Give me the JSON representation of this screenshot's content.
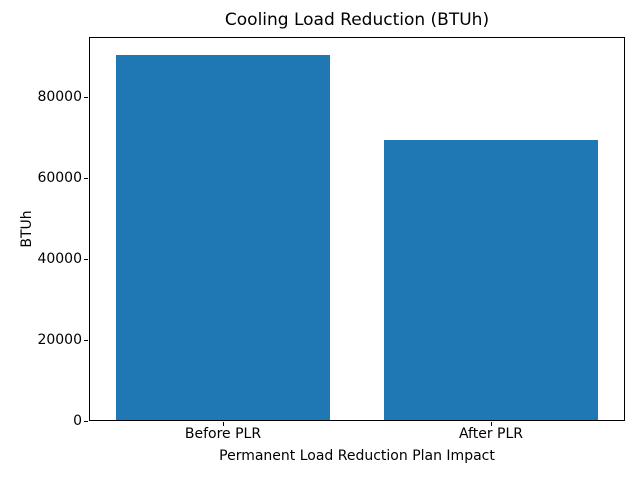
{
  "figure": {
    "background_color": "#ffffff",
    "text_color": "#000000"
  },
  "chart_data": {
    "type": "bar",
    "title": "Cooling Load Reduction (BTUh)",
    "xlabel": "Permanent Load Reduction Plan Impact",
    "ylabel": "BTUh",
    "categories": [
      "Before PLR",
      "After PLR"
    ],
    "values": [
      90300,
      69500
    ],
    "yticks": [
      0,
      20000,
      40000,
      60000,
      80000
    ],
    "ytick_labels": [
      "0",
      "20000",
      "40000",
      "60000",
      "80000"
    ],
    "ylim": [
      0,
      94815
    ],
    "bar_color": "#1f77b4",
    "bar_width_fraction": 0.8,
    "grid": false,
    "legend": null,
    "spines": "all"
  }
}
